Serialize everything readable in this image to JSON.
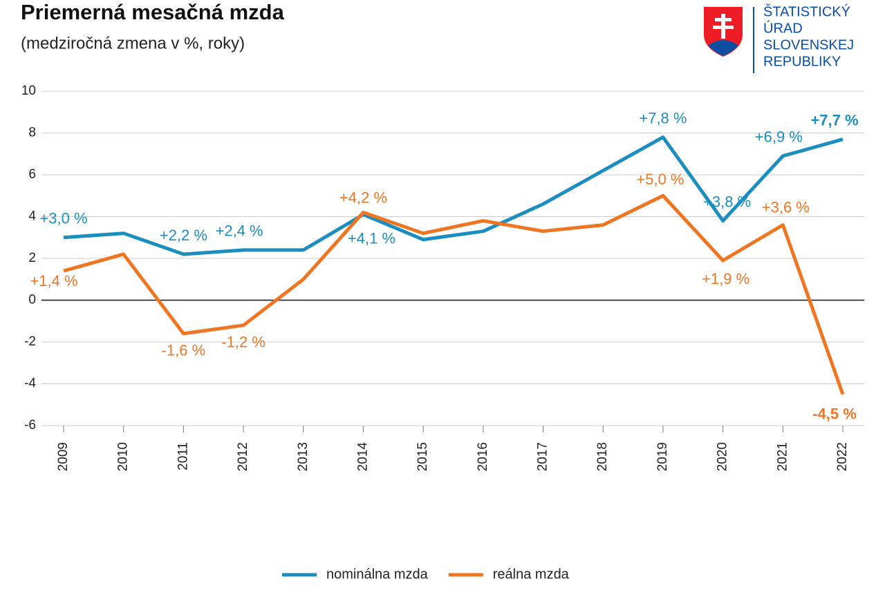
{
  "chart_data": {
    "type": "line",
    "title": "Priemerná mesačná mzda",
    "subtitle": "(medziročná zmena v %, roky)",
    "logo": [
      "ŠTATISTICKÝ",
      "ÚRAD",
      "SLOVENSKEJ",
      "REPUBLIKY"
    ],
    "categories": [
      "2009",
      "2010",
      "2011",
      "2012",
      "2013",
      "2014",
      "2015",
      "2016",
      "2017",
      "2018",
      "2019",
      "2020",
      "2021",
      "2022"
    ],
    "series": [
      {
        "name": "nominálna mzda",
        "color": "#1b8dbf",
        "values": [
          3.0,
          3.2,
          2.2,
          2.4,
          2.4,
          4.1,
          2.9,
          3.3,
          4.6,
          6.2,
          7.8,
          3.8,
          6.9,
          7.7
        ],
        "value_labels": [
          "+3,0 %",
          null,
          "+2,2 %",
          "+2,4 %",
          null,
          "+4,1 %",
          null,
          null,
          null,
          null,
          "+7,8 %",
          "+3,8 %",
          "+6,9 %",
          "+7,7 %"
        ]
      },
      {
        "name": "reálna mzda",
        "color": "#ee7623",
        "values": [
          1.4,
          2.2,
          -1.6,
          -1.2,
          1.0,
          4.2,
          3.2,
          3.8,
          3.3,
          3.6,
          5.0,
          1.9,
          3.6,
          -4.5
        ],
        "value_labels": [
          "+1,4 %",
          null,
          "-1,6 %",
          "-1,2 %",
          null,
          "+4,2 %",
          null,
          null,
          null,
          null,
          "+5,0 %",
          "+1,9 %",
          "+3,6 %",
          "-4,5 %"
        ]
      }
    ],
    "ylim": [
      -6,
      10
    ],
    "yticks": [
      -6,
      -4,
      -2,
      0,
      2,
      4,
      6,
      8,
      10
    ],
    "grid": true
  }
}
